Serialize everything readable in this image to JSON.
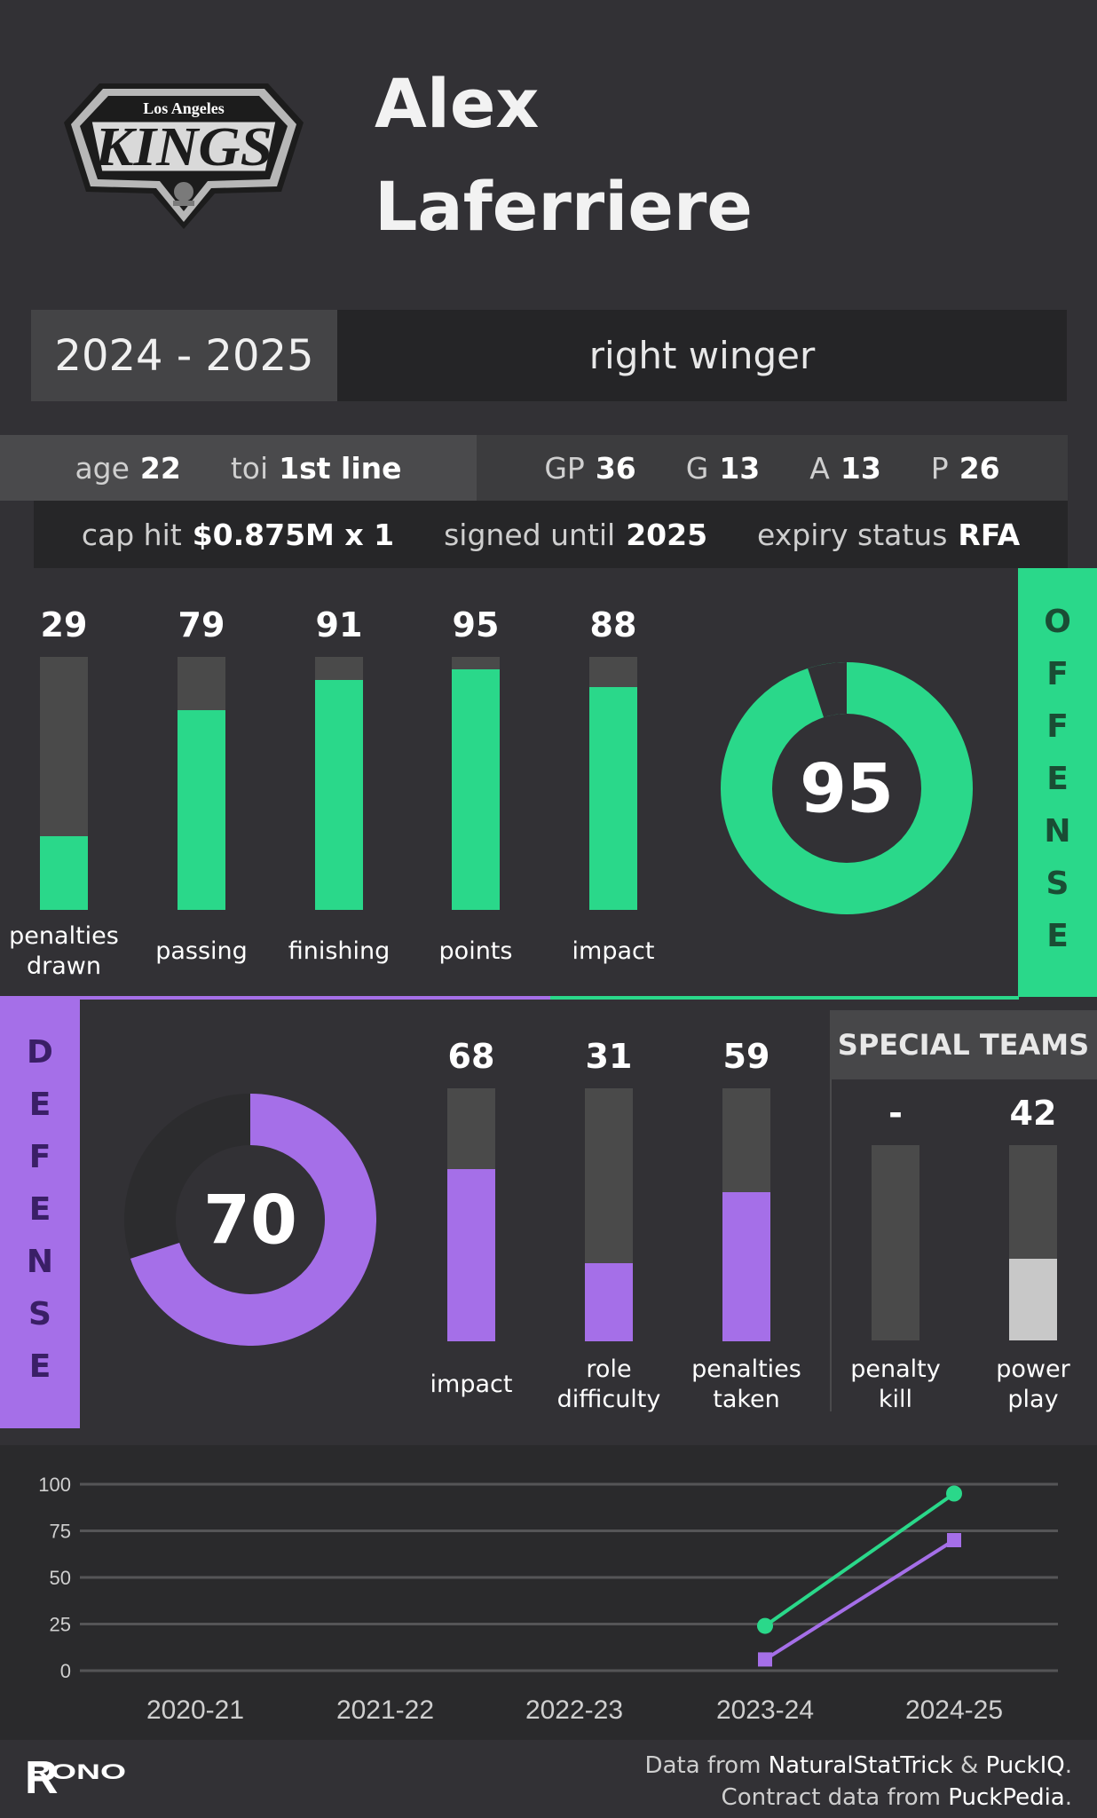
{
  "team": {
    "logo_text_top": "Los Angeles",
    "logo_text_main": "KINGS"
  },
  "player": {
    "first_name": "Alex",
    "last_name": "Laferriere"
  },
  "season": "2024 - 2025",
  "position": "right winger",
  "stats_row1": {
    "age_label": "age",
    "age": "22",
    "toi_label": "toi",
    "toi": "1st line",
    "gp_label": "GP",
    "gp": "36",
    "g_label": "G",
    "g": "13",
    "a_label": "A",
    "a": "13",
    "p_label": "P",
    "p": "26"
  },
  "stats_row2": {
    "cap_label": "cap hit",
    "cap": "$0.875M x 1",
    "signed_label": "signed until",
    "signed": "2025",
    "expiry_label": "expiry status",
    "expiry": "RFA"
  },
  "colors": {
    "offense": "#2ad88a",
    "defense": "#a56fe8",
    "special": "#c8c8c8",
    "track": "#4a4a4a"
  },
  "offense": {
    "side_label": [
      "O",
      "F",
      "F",
      "E",
      "N",
      "S",
      "E"
    ],
    "overall": 95,
    "overall_label": "95",
    "bars": [
      {
        "label": [
          "penalties",
          "drawn"
        ],
        "value": 29,
        "value_label": "29"
      },
      {
        "label": [
          "passing"
        ],
        "value": 79,
        "value_label": "79"
      },
      {
        "label": [
          "finishing"
        ],
        "value": 91,
        "value_label": "91"
      },
      {
        "label": [
          "points"
        ],
        "value": 95,
        "value_label": "95"
      },
      {
        "label": [
          "impact"
        ],
        "value": 88,
        "value_label": "88"
      }
    ]
  },
  "defense": {
    "side_label": [
      "D",
      "E",
      "F",
      "E",
      "N",
      "S",
      "E"
    ],
    "overall": 70,
    "overall_label": "70",
    "bars": [
      {
        "label": [
          "impact"
        ],
        "value": 68,
        "value_label": "68"
      },
      {
        "label": [
          "role",
          "difficulty"
        ],
        "value": 31,
        "value_label": "31"
      },
      {
        "label": [
          "penalties",
          "taken"
        ],
        "value": 59,
        "value_label": "59"
      }
    ]
  },
  "special_teams": {
    "header": "SPECIAL TEAMS",
    "bars": [
      {
        "label": [
          "penalty",
          "kill"
        ],
        "value": null,
        "value_label": "-"
      },
      {
        "label": [
          "power",
          "play"
        ],
        "value": 42,
        "value_label": "42"
      }
    ]
  },
  "chart_data": {
    "type": "line",
    "categories": [
      "2020-21",
      "2021-22",
      "2022-23",
      "2023-24",
      "2024-25"
    ],
    "ylim": [
      0,
      100
    ],
    "yticks": [
      "0",
      "25",
      "50",
      "75",
      "100"
    ],
    "grid": true,
    "series": [
      {
        "key": "offense",
        "marker": "circle",
        "values": [
          null,
          null,
          null,
          24,
          95
        ]
      },
      {
        "key": "defense",
        "marker": "square",
        "values": [
          null,
          null,
          null,
          6,
          70
        ]
      }
    ]
  },
  "footer": {
    "brand": "RONO",
    "line1_prefix": "Data from ",
    "line1_src1": "NaturalStatTrick",
    "line1_amp": " & ",
    "line1_src2": "PuckIQ",
    "line1_end": ".",
    "line2_prefix": "Contract data from ",
    "line2_src": "PuckPedia",
    "line2_end": "."
  }
}
